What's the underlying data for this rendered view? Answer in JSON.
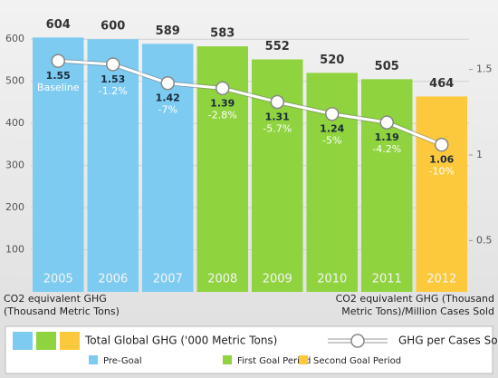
{
  "chart_data": {
    "type": "bar-line",
    "categories": [
      "2005",
      "2006",
      "2007",
      "2008",
      "2009",
      "2010",
      "2011",
      "2012"
    ],
    "series": [
      {
        "name": "Total Global GHG ('000 Metric Tons)",
        "type": "bar",
        "values": [
          604,
          600,
          589,
          583,
          552,
          520,
          505,
          464
        ],
        "colors": [
          "#7ecbf1",
          "#7ecbf1",
          "#7ecbf1",
          "#8fd33f",
          "#8fd33f",
          "#8fd33f",
          "#8fd33f",
          "#fdc93c"
        ]
      },
      {
        "name": "GHG per Cases Sold",
        "type": "line",
        "axis": "y2",
        "color": "#ffffff",
        "values": [
          1.55,
          1.53,
          1.42,
          1.39,
          1.31,
          1.24,
          1.19,
          1.06
        ],
        "annotations": [
          "Baseline",
          "-1.2%",
          "-7%",
          "-2.8%",
          "-5.7%",
          "-5%",
          "-4.2%",
          "-10%"
        ]
      }
    ],
    "periods": [
      {
        "name": "Pre-Goal",
        "color": "#7ecbf1"
      },
      {
        "name": "First Goal Period",
        "color": "#8fd33f"
      },
      {
        "name": "Second Goal Period",
        "color": "#fdc93c"
      }
    ],
    "ylim": [
      0,
      650
    ],
    "yticks": [
      100,
      200,
      300,
      400,
      500,
      600
    ],
    "y2lim": [
      0.2,
      1.8
    ],
    "y2ticks": [
      0.5,
      1.0,
      1.5
    ],
    "ylabel": [
      "CO2 equivalent GHG",
      "(Thousand Metric Tons)"
    ],
    "y2label": [
      "CO2 equivalent GHG (Thousand",
      "Metric Tons)/Million Cases Sold"
    ]
  }
}
